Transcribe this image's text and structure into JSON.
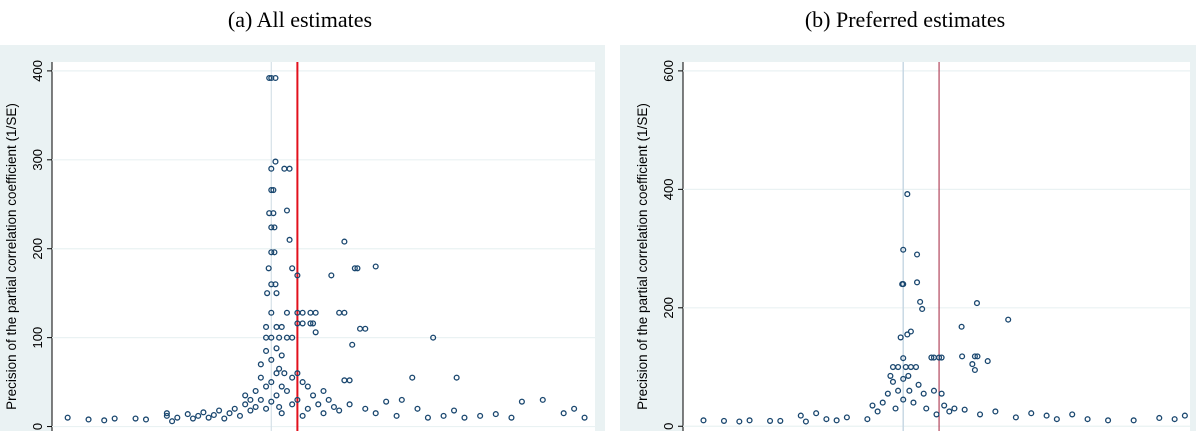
{
  "chart_data": [
    {
      "type": "scatter",
      "title": "(a) All estimates",
      "y_label": "Precision of the partial correlation coefficient (1/SE)",
      "color": "#1a476f",
      "xlim": [
        -0.42,
        0.62
      ],
      "ylim": [
        -5,
        410
      ],
      "yticks": [
        0,
        100,
        200,
        300,
        400
      ],
      "grid": true,
      "vlines": [
        {
          "value": 0,
          "color": "#d5e0e8",
          "width": 1.2
        },
        {
          "value": 0.05,
          "color": "#e2101c",
          "width": 2
        }
      ],
      "x": [
        -0.39,
        -0.35,
        -0.32,
        -0.3,
        -0.26,
        -0.24,
        -0.2,
        -0.2,
        -0.19,
        -0.18,
        -0.16,
        -0.15,
        -0.14,
        -0.13,
        -0.12,
        -0.11,
        -0.1,
        -0.09,
        -0.08,
        -0.07,
        -0.06,
        -0.05,
        -0.05,
        -0.04,
        -0.04,
        -0.03,
        -0.03,
        -0.02,
        -0.02,
        -0.02,
        -0.01,
        -0.01,
        -0.01,
        -0.01,
        -0.01,
        -0.008,
        -0.005,
        -0.004,
        -0.004,
        0,
        0,
        0,
        0,
        0,
        0,
        0,
        0,
        0,
        0,
        0,
        0.004,
        0.004,
        0.006,
        0.006,
        0.008,
        0.008,
        0.008,
        0.01,
        0.01,
        0.01,
        0.01,
        0.01,
        0.015,
        0.015,
        0.015,
        0.02,
        0.02,
        0.02,
        0.02,
        0.025,
        0.025,
        0.03,
        0.03,
        0.03,
        0.03,
        0.035,
        0.035,
        0.04,
        0.04,
        0.04,
        0.04,
        0.05,
        0.05,
        0.05,
        0.05,
        0.05,
        0.06,
        0.06,
        0.06,
        0.06,
        0.07,
        0.07,
        0.075,
        0.075,
        0.08,
        0.08,
        0.085,
        0.085,
        0.09,
        0.1,
        0.1,
        0.11,
        0.115,
        0.12,
        0.13,
        0.13,
        0.14,
        0.14,
        0.14,
        0.15,
        0.15,
        0.155,
        0.16,
        0.165,
        0.17,
        0.18,
        0.18,
        0.2,
        0.2,
        0.22,
        0.24,
        0.25,
        0.27,
        0.28,
        0.3,
        0.31,
        0.33,
        0.35,
        0.355,
        0.37,
        0.4,
        0.43,
        0.46,
        0.48,
        0.52,
        0.56,
        0.58,
        0.6
      ],
      "values": [
        10,
        8,
        7,
        9,
        9,
        8,
        15,
        12,
        6,
        10,
        14,
        9,
        12,
        16,
        10,
        13,
        18,
        9,
        15,
        20,
        12,
        25,
        35,
        18,
        30,
        40,
        22,
        55,
        70,
        30,
        85,
        100,
        112,
        45,
        20,
        150,
        178,
        240,
        392,
        392,
        290,
        266,
        224,
        196,
        160,
        128,
        100,
        75,
        50,
        28,
        240,
        266,
        224,
        196,
        392,
        298,
        160,
        150,
        112,
        88,
        60,
        35,
        100,
        65,
        22,
        112,
        80,
        45,
        15,
        290,
        60,
        243,
        128,
        100,
        40,
        290,
        210,
        178,
        100,
        55,
        25,
        170,
        128,
        116,
        60,
        30,
        128,
        116,
        50,
        12,
        45,
        20,
        128,
        116,
        116,
        35,
        128,
        106,
        25,
        40,
        15,
        30,
        170,
        22,
        128,
        18,
        128,
        208,
        52,
        52,
        25,
        92,
        178,
        178,
        110,
        110,
        20,
        180,
        15,
        28,
        12,
        30,
        55,
        20,
        10,
        100,
        12,
        18,
        55,
        10,
        12,
        14,
        10,
        28,
        30,
        15,
        20,
        10
      ]
    },
    {
      "type": "scatter",
      "title": "(b) Preferred estimates",
      "y_label": "Precision of the partial correlation coefficient (1/SE)",
      "color": "#1a476f",
      "xlim": [
        -0.43,
        0.56
      ],
      "ylim": [
        -8,
        615
      ],
      "yticks": [
        0,
        200,
        400,
        600
      ],
      "grid": true,
      "vlines": [
        {
          "value": 0,
          "color": "#c8d8e4",
          "width": 1.5
        },
        {
          "value": 0.07,
          "color": "#a3203c",
          "width": 1
        }
      ],
      "x": [
        -0.39,
        -0.35,
        -0.32,
        -0.3,
        -0.26,
        -0.24,
        -0.2,
        -0.19,
        -0.17,
        -0.15,
        -0.13,
        -0.11,
        -0.07,
        -0.06,
        -0.05,
        -0.04,
        -0.03,
        -0.025,
        -0.02,
        -0.02,
        -0.015,
        -0.01,
        -0.01,
        -0.005,
        -0.002,
        0,
        0,
        0,
        0,
        0,
        0.005,
        0.008,
        0.008,
        0.01,
        0.012,
        0.015,
        0.015,
        0.02,
        0.025,
        0.027,
        0.027,
        0.03,
        0.033,
        0.037,
        0.04,
        0.045,
        0.055,
        0.06,
        0.06,
        0.065,
        0.07,
        0.075,
        0.075,
        0.08,
        0.09,
        0.1,
        0.114,
        0.115,
        0.12,
        0.135,
        0.14,
        0.14,
        0.144,
        0.145,
        0.15,
        0.165,
        0.18,
        0.205,
        0.22,
        0.25,
        0.28,
        0.3,
        0.33,
        0.36,
        0.4,
        0.45,
        0.5,
        0.53,
        0.55
      ],
      "values": [
        10,
        9,
        8,
        10,
        9,
        9,
        18,
        8,
        22,
        12,
        10,
        15,
        12,
        35,
        25,
        40,
        55,
        85,
        100,
        75,
        30,
        100,
        60,
        150,
        240,
        240,
        298,
        115,
        80,
        45,
        100,
        392,
        155,
        85,
        60,
        160,
        100,
        40,
        100,
        290,
        243,
        70,
        210,
        198,
        55,
        30,
        116,
        116,
        60,
        20,
        116,
        116,
        55,
        35,
        25,
        30,
        168,
        118,
        28,
        105,
        118,
        95,
        208,
        118,
        20,
        110,
        25,
        180,
        15,
        22,
        18,
        12,
        20,
        12,
        10,
        10,
        14,
        12,
        18
      ]
    }
  ]
}
